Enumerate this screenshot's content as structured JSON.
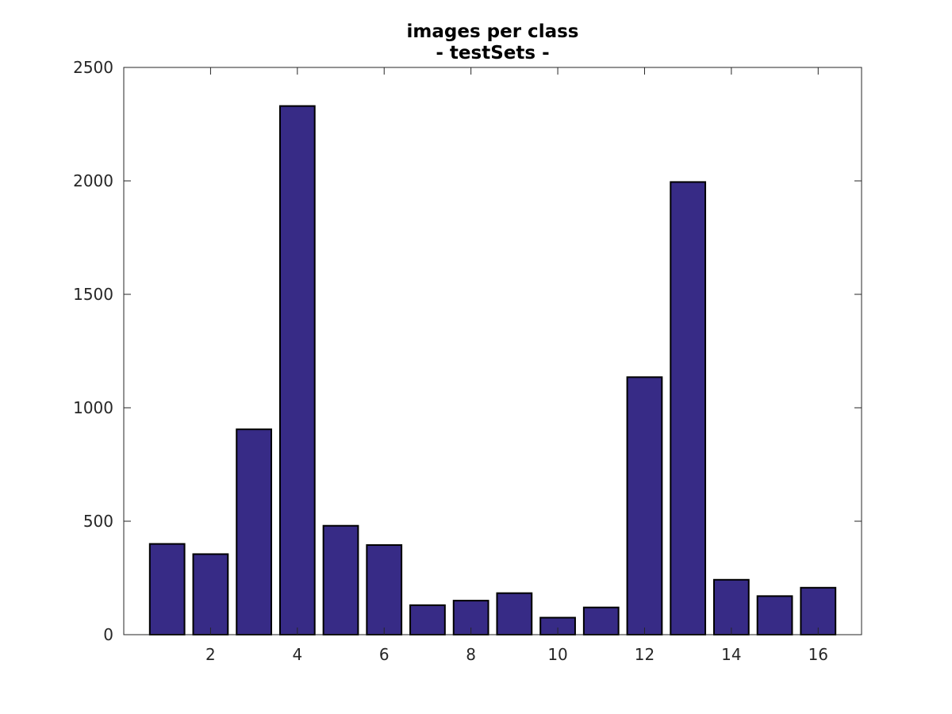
{
  "chart_data": {
    "type": "bar",
    "title": "images per class",
    "subtitle": "- testSets -",
    "xlabel": "",
    "ylabel": "",
    "x": [
      1,
      2,
      3,
      4,
      5,
      6,
      7,
      8,
      9,
      10,
      11,
      12,
      13,
      14,
      15,
      16
    ],
    "values": [
      400,
      355,
      905,
      2330,
      480,
      395,
      130,
      150,
      183,
      75,
      120,
      1135,
      1995,
      242,
      170,
      207
    ],
    "xlim": [
      0,
      17
    ],
    "ylim": [
      0,
      2500
    ],
    "xticks": [
      2,
      4,
      6,
      8,
      10,
      12,
      14,
      16
    ],
    "yticks": [
      0,
      500,
      1000,
      1500,
      2000,
      2500
    ],
    "grid": false,
    "legend": "none",
    "bar_color": "#372b86",
    "edge_color": "#000000"
  }
}
